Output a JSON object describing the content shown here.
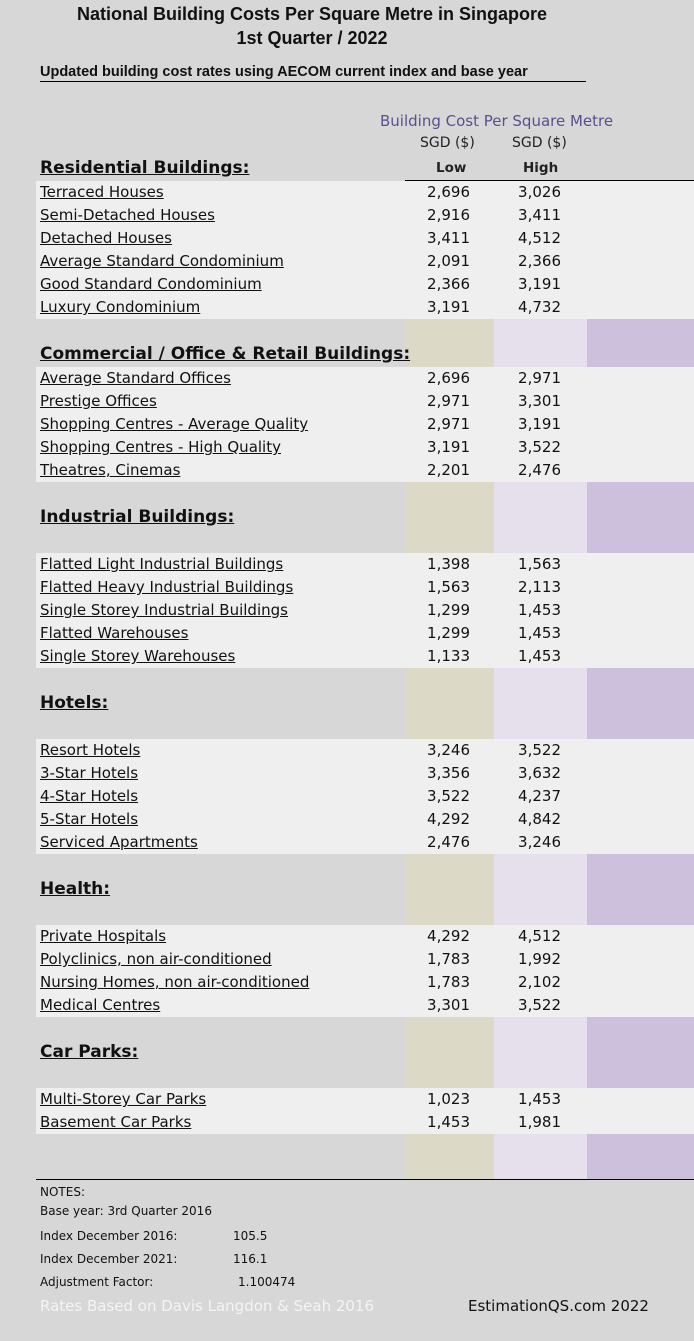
{
  "title_line1": "National Building Costs Per Square Metre in Singapore",
  "title_line2": "1st Quarter / 2022",
  "subtitle": "Updated building cost rates using AECOM current index and base year",
  "header": {
    "main": "Building Cost Per Square Metre",
    "currency_low": "SGD ($)",
    "currency_high": "SGD ($)",
    "low": "Low",
    "high": "High"
  },
  "colors": {
    "background": "#d7d7d7",
    "row_band": "#efefef",
    "low_column": "#dcd9c6",
    "high_column": "#e5e0ec",
    "side_column": "#ccc0dc",
    "header_text": "#5c4e8e"
  },
  "sections": [
    {
      "title": "Residential Buildings:",
      "rows": [
        {
          "name": "Terraced Houses",
          "low": "2,696",
          "high": "3,026"
        },
        {
          "name": "Semi-Detached Houses",
          "low": "2,916",
          "high": "3,411"
        },
        {
          "name": "Detached Houses",
          "low": "3,411",
          "high": "4,512"
        },
        {
          "name": "Average Standard Condominium",
          "low": "2,091",
          "high": "2,366"
        },
        {
          "name": "Good Standard Condominium",
          "low": "2,366",
          "high": "3,191"
        },
        {
          "name": "Luxury Condominium",
          "low": "3,191",
          "high": "4,732"
        }
      ]
    },
    {
      "title": "Commercial / Office & Retail Buildings:",
      "rows": [
        {
          "name": "Average Standard Offices",
          "low": "2,696",
          "high": "2,971"
        },
        {
          "name": "Prestige Offices",
          "low": "2,971",
          "high": "3,301"
        },
        {
          "name": "Shopping Centres - Average Quality",
          "low": "2,971",
          "high": "3,191"
        },
        {
          "name": "Shopping Centres - High Quality",
          "low": "3,191",
          "high": "3,522"
        },
        {
          "name": "Theatres, Cinemas",
          "low": "2,201",
          "high": "2,476"
        }
      ]
    },
    {
      "title": "Industrial Buildings:",
      "rows": [
        {
          "name": "Flatted Light Industrial Buildings",
          "low": "1,398",
          "high": "1,563"
        },
        {
          "name": "Flatted Heavy Industrial Buildings",
          "low": "1,563",
          "high": "2,113"
        },
        {
          "name": "Single Storey Industrial Buildings",
          "low": "1,299",
          "high": "1,453"
        },
        {
          "name": "Flatted Warehouses",
          "low": "1,299",
          "high": "1,453"
        },
        {
          "name": "Single Storey Warehouses",
          "low": "1,133",
          "high": "1,453"
        }
      ]
    },
    {
      "title": "Hotels:",
      "rows": [
        {
          "name": "Resort Hotels",
          "low": "3,246",
          "high": "3,522"
        },
        {
          "name": "3-Star Hotels",
          "low": "3,356",
          "high": "3,632"
        },
        {
          "name": "4-Star Hotels",
          "low": "3,522",
          "high": "4,237"
        },
        {
          "name": "5-Star Hotels",
          "low": "4,292",
          "high": "4,842"
        },
        {
          "name": "Serviced Apartments",
          "low": "2,476",
          "high": "3,246"
        }
      ]
    },
    {
      "title": "Health:",
      "rows": [
        {
          "name": "Private Hospitals",
          "low": "4,292",
          "high": "4,512"
        },
        {
          "name": "Polyclinics, non air-conditioned",
          "low": "1,783",
          "high": "1,992"
        },
        {
          "name": "Nursing Homes, non air-conditioned",
          "low": "1,783",
          "high": "2,102"
        },
        {
          "name": "Medical Centres",
          "low": "3,301",
          "high": "3,522"
        }
      ]
    },
    {
      "title": "Car Parks:",
      "rows": [
        {
          "name": "Multi-Storey Car Parks",
          "low": "1,023",
          "high": "1,453"
        },
        {
          "name": "Basement Car Parks",
          "low": "1,453",
          "high": "1,981"
        }
      ]
    }
  ],
  "notes": {
    "heading": "NOTES:",
    "base_year": "Base year: 3rd Quarter 2016",
    "index_2016_label": "Index December 2016:",
    "index_2016_value": "105.5",
    "index_2021_label": "Index December 2021:",
    "index_2021_value": "116.1",
    "adjustment_label": "Adjustment Factor:",
    "adjustment_value": "1.100474"
  },
  "footer": {
    "left": "Rates Based on Davis Langdon & Seah 2016",
    "right": "EstimationQS.com 2022"
  }
}
